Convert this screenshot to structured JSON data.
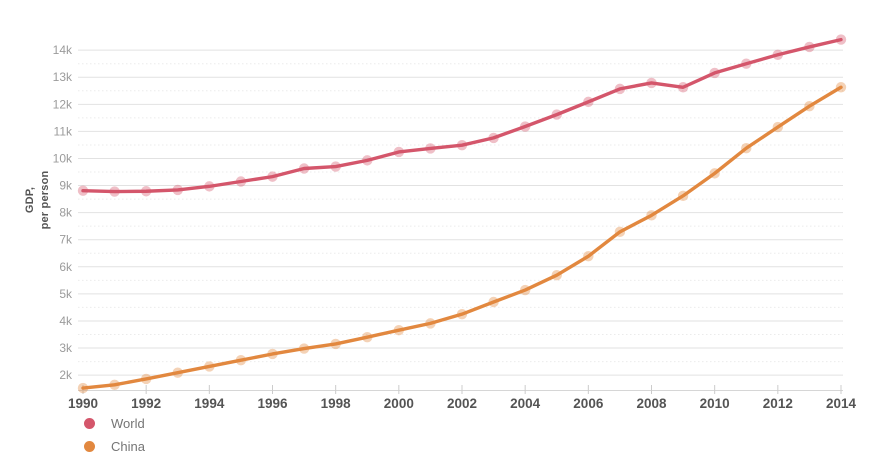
{
  "chart_data": {
    "type": "line",
    "title": "",
    "ylabel": "GDP, per person",
    "ylabel_lines": [
      "GDP,",
      "per person"
    ],
    "xlim": [
      1990,
      2014
    ],
    "ylim": [
      1450,
      14560
    ],
    "grid": true,
    "legend_position": "bottom-left",
    "x": [
      1990,
      1991,
      1992,
      1993,
      1994,
      1995,
      1996,
      1997,
      1998,
      1999,
      2000,
      2001,
      2002,
      2003,
      2004,
      2005,
      2006,
      2007,
      2008,
      2009,
      2010,
      2011,
      2012,
      2013,
      2014
    ],
    "xticks": {
      "values": [
        1990,
        1992,
        1994,
        1996,
        1998,
        2000,
        2002,
        2004,
        2006,
        2008,
        2010,
        2012,
        2014
      ],
      "labels": [
        "1990",
        "1992",
        "1994",
        "1996",
        "1998",
        "2000",
        "2002",
        "2004",
        "2006",
        "2008",
        "2010",
        "2012",
        "2014"
      ]
    },
    "yticks": {
      "values": [
        2000,
        3000,
        4000,
        5000,
        6000,
        7000,
        8000,
        9000,
        10000,
        11000,
        12000,
        13000,
        14000
      ],
      "labels": [
        "2k",
        "3k",
        "4k",
        "5k",
        "6k",
        "7k",
        "8k",
        "9k",
        "10k",
        "11k",
        "12k",
        "13k",
        "14k"
      ]
    },
    "minor_ytick_step": 500,
    "series": [
      {
        "name": "World",
        "color": "#d4566b",
        "values": [
          8810,
          8780,
          8790,
          8840,
          8970,
          9150,
          9330,
          9630,
          9700,
          9930,
          10240,
          10370,
          10490,
          10760,
          11180,
          11620,
          12090,
          12570,
          12790,
          12630,
          13160,
          13500,
          13830,
          14120,
          14390
        ]
      },
      {
        "name": "China",
        "color": "#e2883f",
        "values": [
          1520,
          1640,
          1860,
          2090,
          2320,
          2550,
          2780,
          2980,
          3150,
          3400,
          3660,
          3910,
          4250,
          4700,
          5140,
          5690,
          6390,
          7290,
          7900,
          8620,
          9450,
          10380,
          11160,
          11930,
          12630
        ]
      }
    ]
  }
}
